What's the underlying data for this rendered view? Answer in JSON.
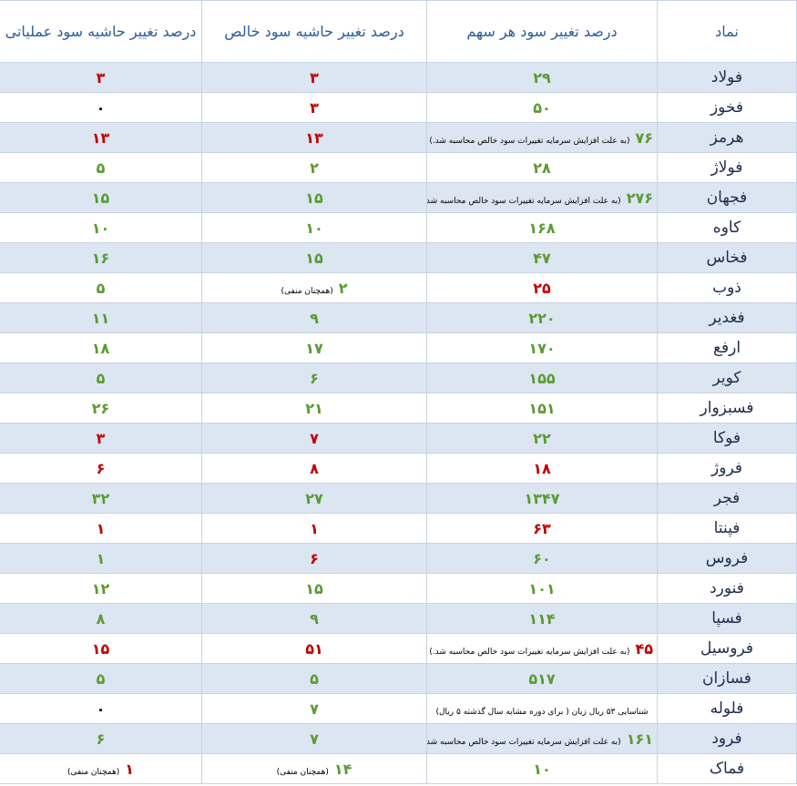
{
  "table": {
    "headers": [
      "نماد",
      "درصد تغییر سود هر سهم",
      "درصد تغییر حاشیه سود خالص",
      "درصد تغییر حاشیه سود عملیاتی"
    ],
    "rows": [
      {
        "symbol": "فولاد",
        "cells": [
          {
            "value": "۲۹",
            "color": "#5a9b32"
          },
          {
            "value": "۳",
            "color": "#c00000"
          },
          {
            "value": "۳",
            "color": "#c00000"
          }
        ]
      },
      {
        "symbol": "فخوز",
        "cells": [
          {
            "value": "۵۰",
            "color": "#5a9b32"
          },
          {
            "value": "۳",
            "color": "#c00000"
          },
          {
            "value": "۰",
            "color": "#000000"
          }
        ]
      },
      {
        "symbol": "هرمز",
        "cells": [
          {
            "value": "۷۶",
            "color": "#5a9b32",
            "note": "(به علت افزایش سرمایه تغییرات سود خالص محاسبه شد.)"
          },
          {
            "value": "۱۳",
            "color": "#c00000"
          },
          {
            "value": "۱۳",
            "color": "#c00000"
          }
        ]
      },
      {
        "symbol": "فولاژ",
        "cells": [
          {
            "value": "۲۸",
            "color": "#5a9b32"
          },
          {
            "value": "۲",
            "color": "#5a9b32"
          },
          {
            "value": "۵",
            "color": "#5a9b32"
          }
        ]
      },
      {
        "symbol": "فجهان",
        "cells": [
          {
            "value": "۲۷۶",
            "color": "#5a9b32",
            "note": "(به علت افزایش سرمایه تغییرات سود خالص محاسبه شد.)"
          },
          {
            "value": "۱۵",
            "color": "#5a9b32"
          },
          {
            "value": "۱۵",
            "color": "#5a9b32"
          }
        ]
      },
      {
        "symbol": "کاوه",
        "cells": [
          {
            "value": "۱۶۸",
            "color": "#5a9b32"
          },
          {
            "value": "۱۰",
            "color": "#5a9b32"
          },
          {
            "value": "۱۰",
            "color": "#5a9b32"
          }
        ]
      },
      {
        "symbol": "فخاس",
        "cells": [
          {
            "value": "۴۷",
            "color": "#5a9b32"
          },
          {
            "value": "۱۵",
            "color": "#5a9b32"
          },
          {
            "value": "۱۶",
            "color": "#5a9b32"
          }
        ]
      },
      {
        "symbol": "ذوب",
        "cells": [
          {
            "value": "۲۵",
            "color": "#c00000"
          },
          {
            "value": "۲",
            "color": "#5a9b32",
            "note": "(همچنان منفی)"
          },
          {
            "value": "۵",
            "color": "#5a9b32"
          }
        ]
      },
      {
        "symbol": "فغدیر",
        "cells": [
          {
            "value": "۲۲۰",
            "color": "#5a9b32"
          },
          {
            "value": "۹",
            "color": "#5a9b32"
          },
          {
            "value": "۱۱",
            "color": "#5a9b32"
          }
        ]
      },
      {
        "symbol": "ارفع",
        "cells": [
          {
            "value": "۱۷۰",
            "color": "#5a9b32"
          },
          {
            "value": "۱۷",
            "color": "#5a9b32"
          },
          {
            "value": "۱۸",
            "color": "#5a9b32"
          }
        ]
      },
      {
        "symbol": "کویر",
        "cells": [
          {
            "value": "۱۵۵",
            "color": "#5a9b32"
          },
          {
            "value": "۶",
            "color": "#5a9b32"
          },
          {
            "value": "۵",
            "color": "#5a9b32"
          }
        ]
      },
      {
        "symbol": "فسبزوار",
        "cells": [
          {
            "value": "۱۵۱",
            "color": "#5a9b32"
          },
          {
            "value": "۲۱",
            "color": "#5a9b32"
          },
          {
            "value": "۲۶",
            "color": "#5a9b32"
          }
        ]
      },
      {
        "symbol": "فوکا",
        "cells": [
          {
            "value": "۲۲",
            "color": "#5a9b32"
          },
          {
            "value": "۷",
            "color": "#c00000"
          },
          {
            "value": "۳",
            "color": "#c00000"
          }
        ]
      },
      {
        "symbol": "فروژ",
        "cells": [
          {
            "value": "۱۸",
            "color": "#c00000"
          },
          {
            "value": "۸",
            "color": "#c00000"
          },
          {
            "value": "۶",
            "color": "#c00000"
          }
        ]
      },
      {
        "symbol": "فجر",
        "cells": [
          {
            "value": "۱۳۴۷",
            "color": "#5a9b32"
          },
          {
            "value": "۲۷",
            "color": "#5a9b32"
          },
          {
            "value": "۳۲",
            "color": "#5a9b32"
          }
        ]
      },
      {
        "symbol": "فپنتا",
        "cells": [
          {
            "value": "۶۳",
            "color": "#c00000"
          },
          {
            "value": "۱",
            "color": "#c00000"
          },
          {
            "value": "۱",
            "color": "#c00000"
          }
        ]
      },
      {
        "symbol": "فروس",
        "cells": [
          {
            "value": "۶۰",
            "color": "#5a9b32"
          },
          {
            "value": "۶",
            "color": "#c00000"
          },
          {
            "value": "۱",
            "color": "#5a9b32"
          }
        ]
      },
      {
        "symbol": "فنورد",
        "cells": [
          {
            "value": "۱۰۱",
            "color": "#5a9b32"
          },
          {
            "value": "۱۵",
            "color": "#5a9b32"
          },
          {
            "value": "۱۲",
            "color": "#5a9b32"
          }
        ]
      },
      {
        "symbol": "فسپا",
        "cells": [
          {
            "value": "۱۱۴",
            "color": "#5a9b32"
          },
          {
            "value": "۹",
            "color": "#5a9b32"
          },
          {
            "value": "۸",
            "color": "#5a9b32"
          }
        ]
      },
      {
        "symbol": "فروسیل",
        "cells": [
          {
            "value": "۴۵",
            "color": "#c00000",
            "note": "(به علت افزایش سرمایه تغییرات سود خالص محاسبه شد.)"
          },
          {
            "value": "۵۱",
            "color": "#c00000"
          },
          {
            "value": "۱۵",
            "color": "#c00000"
          }
        ]
      },
      {
        "symbol": "فسازان",
        "cells": [
          {
            "value": "۵۱۷",
            "color": "#5a9b32"
          },
          {
            "value": "۵",
            "color": "#5a9b32"
          },
          {
            "value": "۵",
            "color": "#5a9b32"
          }
        ]
      },
      {
        "symbol": "فلوله",
        "cells": [
          {
            "note": "شناسایی ۵۳ ریال زیان ( برای دوره مشابه سال گذشته ۵ ریال)"
          },
          {
            "value": "۷",
            "color": "#5a9b32"
          },
          {
            "value": "۰",
            "color": "#000000"
          }
        ]
      },
      {
        "symbol": "فرود",
        "cells": [
          {
            "value": "۱۶۱",
            "color": "#5a9b32",
            "note": "(به علت افزایش سرمایه تغییرات سود خالص محاسبه شد.)"
          },
          {
            "value": "۷",
            "color": "#5a9b32"
          },
          {
            "value": "۶",
            "color": "#5a9b32"
          }
        ]
      },
      {
        "symbol": "فماک",
        "cells": [
          {
            "value": "۱۰",
            "color": "#5a9b32"
          },
          {
            "value": "۱۴",
            "color": "#5a9b32",
            "note": "(همچنان منفی)"
          },
          {
            "value": "۱",
            "color": "#c00000",
            "note": "(همچنان منفی)"
          }
        ]
      }
    ]
  }
}
